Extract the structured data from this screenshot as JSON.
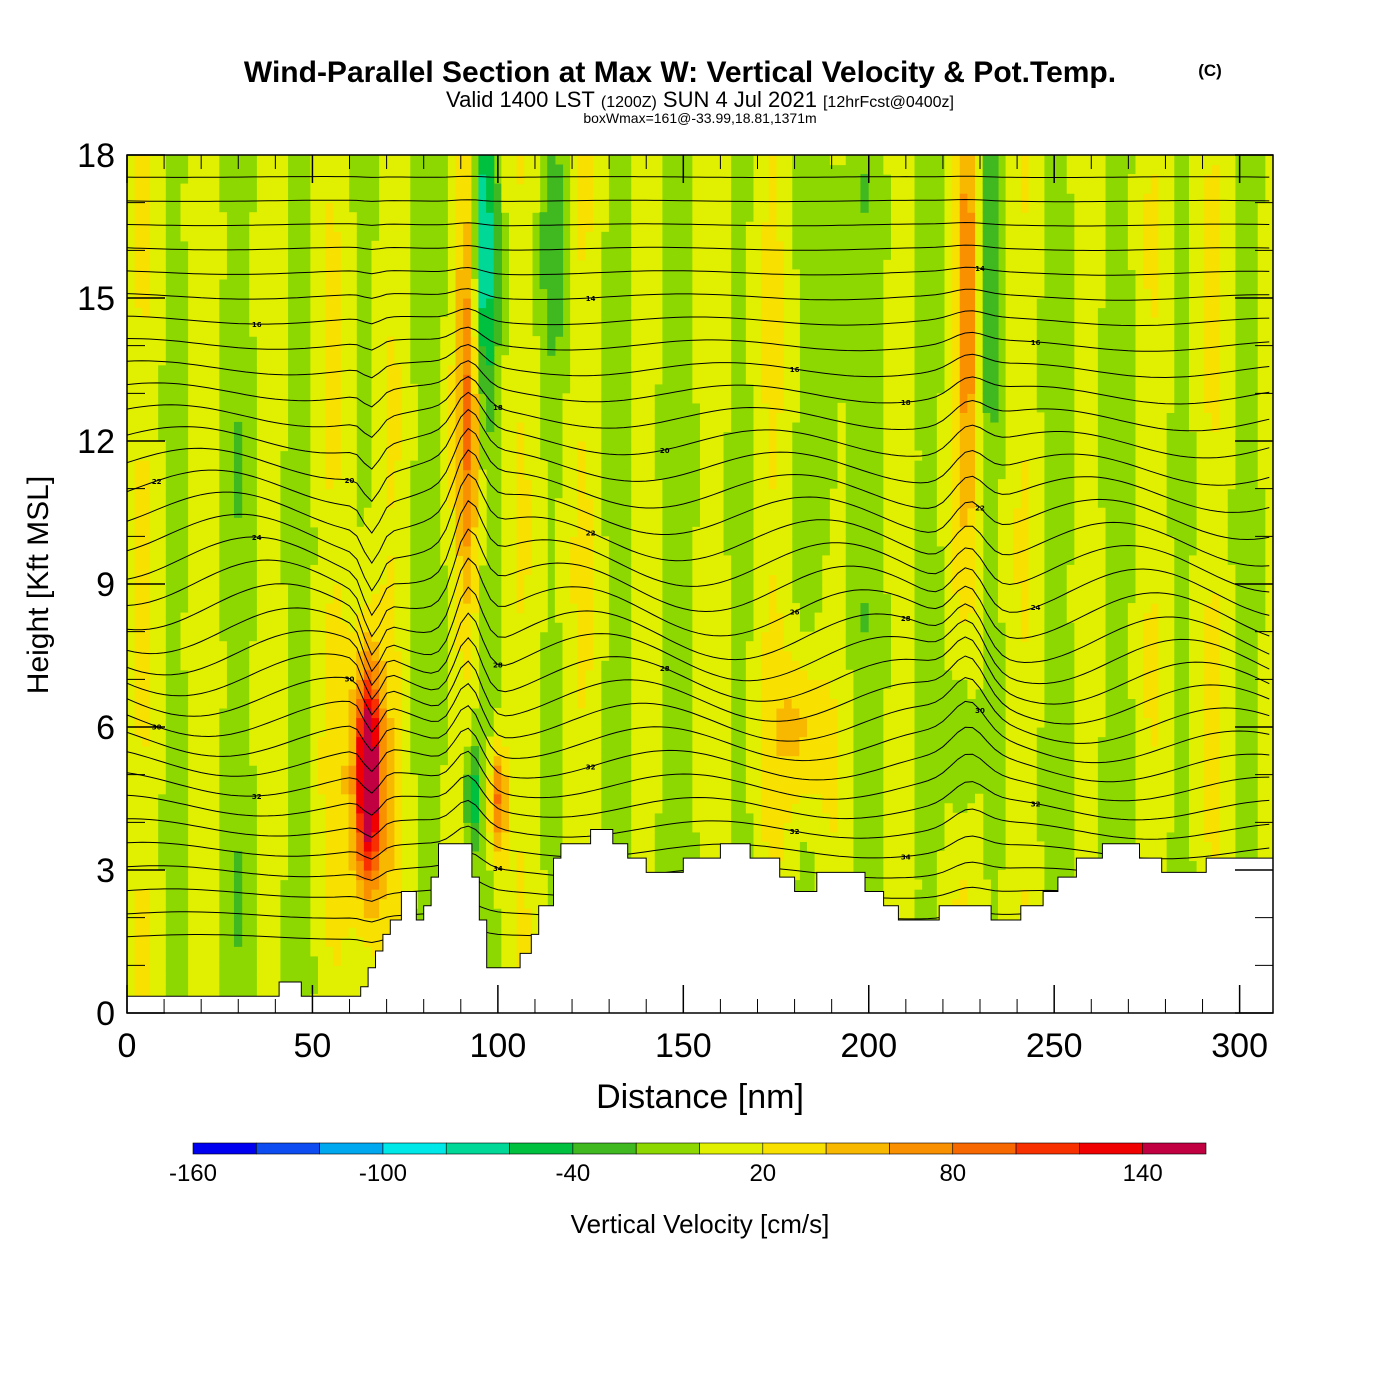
{
  "chart_data": {
    "type": "heatmap",
    "title": "Wind-Parallel Section at Max W: Vertical Velocity & Pot.Temp.",
    "title_mark": "(C)",
    "subtitle": {
      "valid_main": "Valid 1400 LST",
      "valid_utc": "(1200Z)",
      "date": "SUN 4 Jul 2021",
      "forecast": "[12hrFcst@0400z]"
    },
    "info_line": "boxWmax=161@-33.99,18.81,1371m",
    "xlabel": "Distance [nm]",
    "ylabel": "Height [Kft MSL]",
    "xlim": [
      0,
      309
    ],
    "ylim": [
      0,
      18
    ],
    "x_ticks": [
      0,
      50,
      100,
      150,
      200,
      250,
      300
    ],
    "y_ticks": [
      0,
      3,
      6,
      9,
      12,
      15,
      18
    ],
    "colorbar": {
      "label": "Vertical Velocity [cm/s]",
      "levels": [
        -160,
        -140,
        -120,
        -100,
        -80,
        -60,
        -40,
        -20,
        0,
        20,
        40,
        60,
        80,
        100,
        120,
        140,
        160
      ],
      "tick_labels": [
        -160,
        -100,
        -40,
        20,
        80,
        140
      ],
      "colors": [
        "#0000f0",
        "#0c4cf0",
        "#00a8f0",
        "#00e8e8",
        "#00d898",
        "#00c040",
        "#40b820",
        "#8cd800",
        "#e0f000",
        "#f8e000",
        "#f8b800",
        "#f89000",
        "#f86800",
        "#f83000",
        "#f00000",
        "#c00040"
      ]
    },
    "background_color": "#8cd800",
    "terrain": [
      [
        0,
        0.35
      ],
      [
        41,
        0.35
      ],
      [
        41,
        0.65
      ],
      [
        47,
        0.65
      ],
      [
        47,
        0.35
      ],
      [
        63,
        0.35
      ],
      [
        63,
        0.55
      ],
      [
        65,
        0.55
      ],
      [
        65,
        0.95
      ],
      [
        67,
        0.95
      ],
      [
        67,
        1.3
      ],
      [
        69,
        1.3
      ],
      [
        69,
        1.65
      ],
      [
        71,
        1.65
      ],
      [
        71,
        1.95
      ],
      [
        74,
        1.95
      ],
      [
        74,
        2.55
      ],
      [
        78,
        2.55
      ],
      [
        78,
        1.95
      ],
      [
        80,
        1.95
      ],
      [
        80,
        2.25
      ],
      [
        82,
        2.25
      ],
      [
        82,
        2.85
      ],
      [
        84,
        2.85
      ],
      [
        84,
        3.55
      ],
      [
        93,
        3.55
      ],
      [
        93,
        2.85
      ],
      [
        95,
        2.85
      ],
      [
        95,
        1.95
      ],
      [
        97,
        1.95
      ],
      [
        97,
        0.95
      ],
      [
        106,
        0.95
      ],
      [
        106,
        1.25
      ],
      [
        109,
        1.25
      ],
      [
        109,
        1.65
      ],
      [
        111,
        1.65
      ],
      [
        111,
        2.25
      ],
      [
        115,
        2.25
      ],
      [
        115,
        3.25
      ],
      [
        117,
        3.25
      ],
      [
        117,
        3.55
      ],
      [
        125,
        3.55
      ],
      [
        125,
        3.85
      ],
      [
        131,
        3.85
      ],
      [
        131,
        3.55
      ],
      [
        135,
        3.55
      ],
      [
        135,
        3.25
      ],
      [
        140,
        3.25
      ],
      [
        140,
        2.95
      ],
      [
        150,
        2.95
      ],
      [
        150,
        3.25
      ],
      [
        160,
        3.25
      ],
      [
        160,
        3.55
      ],
      [
        168,
        3.55
      ],
      [
        168,
        3.25
      ],
      [
        176,
        3.25
      ],
      [
        176,
        2.85
      ],
      [
        180,
        2.85
      ],
      [
        180,
        2.55
      ],
      [
        186,
        2.55
      ],
      [
        186,
        2.95
      ],
      [
        199,
        2.95
      ],
      [
        199,
        2.55
      ],
      [
        204,
        2.55
      ],
      [
        204,
        2.25
      ],
      [
        208,
        2.25
      ],
      [
        208,
        1.95
      ],
      [
        219,
        1.95
      ],
      [
        219,
        2.25
      ],
      [
        233,
        2.25
      ],
      [
        233,
        1.95
      ],
      [
        241,
        1.95
      ],
      [
        241,
        2.25
      ],
      [
        247,
        2.25
      ],
      [
        247,
        2.55
      ],
      [
        251,
        2.55
      ],
      [
        251,
        2.85
      ],
      [
        256,
        2.85
      ],
      [
        256,
        3.25
      ],
      [
        263,
        3.25
      ],
      [
        263,
        3.55
      ],
      [
        273,
        3.55
      ],
      [
        273,
        3.25
      ],
      [
        279,
        3.25
      ],
      [
        279,
        2.95
      ],
      [
        291,
        2.95
      ],
      [
        291,
        3.25
      ],
      [
        309,
        3.25
      ]
    ],
    "w_features": [
      {
        "x": 65,
        "z": 5.0,
        "w": 150,
        "sx": 2.0,
        "sz": 1.4
      },
      {
        "x": 65,
        "z": 5.0,
        "w": 60,
        "sx": 4.5,
        "sz": 2.6
      },
      {
        "x": 100,
        "z": 4.5,
        "w": 90,
        "sx": 1.8,
        "sz": 0.9
      },
      {
        "x": 92,
        "z": 13.0,
        "w": 80,
        "sx": 2.2,
        "sz": 3.5
      },
      {
        "x": 96,
        "z": 16.0,
        "w": -70,
        "sx": 2.2,
        "sz": 2.2
      },
      {
        "x": 93,
        "z": 4.5,
        "w": -60,
        "sx": 1.3,
        "sz": 0.8
      },
      {
        "x": 227,
        "z": 15.0,
        "w": 60,
        "sx": 2.5,
        "sz": 3.0
      },
      {
        "x": 232,
        "z": 15.5,
        "w": -40,
        "sx": 2.0,
        "sz": 3.0
      },
      {
        "x": 182,
        "z": 6.0,
        "w": 45,
        "sx": 4.5,
        "sz": 1.2
      },
      {
        "x": 225,
        "z": 5.5,
        "w": -35,
        "sx": 2.5,
        "sz": 1.4
      },
      {
        "x": 115,
        "z": 16.5,
        "w": -30,
        "sx": 3.0,
        "sz": 2.0
      },
      {
        "x": 190,
        "z": 14.0,
        "w": -25,
        "sx": 3.0,
        "sz": 3.0
      }
    ],
    "theta_labels": [
      "34",
      "34",
      "34",
      "32",
      "32",
      "32",
      "32",
      "30",
      "30",
      "30",
      "28",
      "28",
      "28",
      "26",
      "24",
      "24",
      "22",
      "22",
      "22",
      "20",
      "20",
      "18",
      "18",
      "16",
      "16",
      "16",
      "14",
      "14"
    ]
  }
}
